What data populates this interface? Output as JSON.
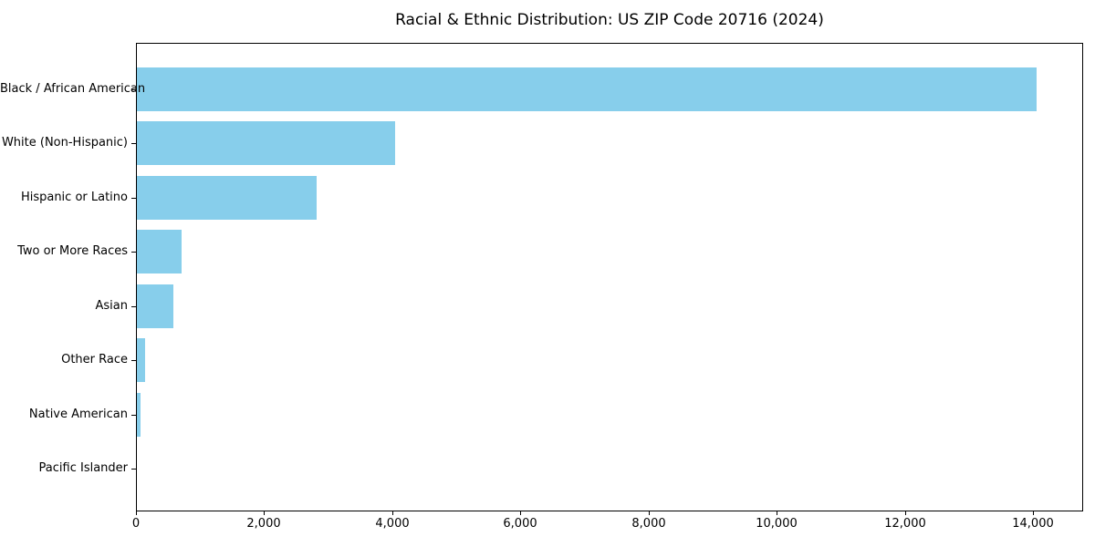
{
  "title": "Racial & Ethnic Distribution: US ZIP Code 20716 (2024)",
  "chart_data": {
    "type": "bar",
    "orientation": "horizontal",
    "title": "Racial & Ethnic Distribution: US ZIP Code 20716 (2024)",
    "xlabel": "",
    "ylabel": "",
    "categories": [
      "Black / African American",
      "White (Non-Hispanic)",
      "Hispanic or Latino",
      "Two or More Races",
      "Asian",
      "Other Race",
      "Native American",
      "Pacific Islander"
    ],
    "values": [
      14050,
      4030,
      2800,
      700,
      570,
      135,
      60,
      0
    ],
    "xlim": [
      0,
      14755
    ],
    "x_ticks": [
      0,
      2000,
      4000,
      6000,
      8000,
      10000,
      12000,
      14000
    ],
    "x_tick_labels": [
      "0",
      "2,000",
      "4,000",
      "6,000",
      "8,000",
      "10,000",
      "12,000",
      "14,000"
    ],
    "bar_color": "#87CEEB",
    "background_color": "#ffffff",
    "frame_color": "#000000",
    "grid": false,
    "legend": null
  }
}
